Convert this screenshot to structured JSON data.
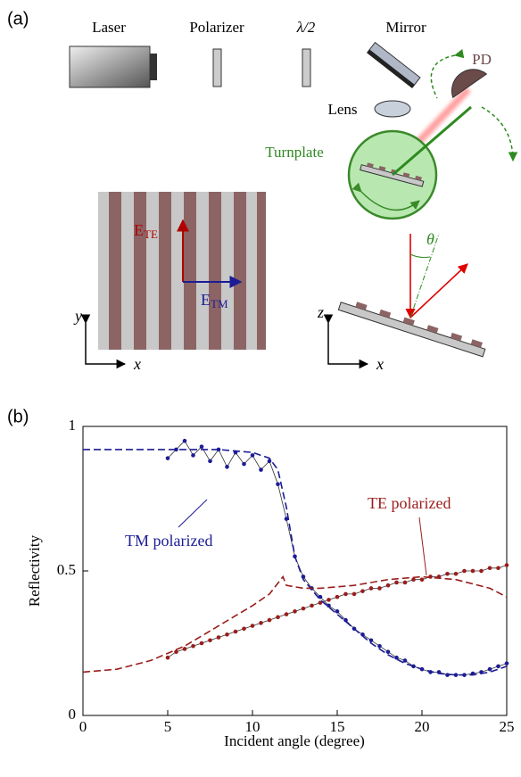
{
  "diagram": {
    "panel_label": "(a)",
    "laser": "Laser",
    "polarizer": "Polarizer",
    "half_wave": "λ/2",
    "mirror": "Mirror",
    "pd": "PD",
    "lens": "Lens",
    "turnplate": "Turnplate",
    "e_te": {
      "main": "E",
      "sub": "TE"
    },
    "e_tm": {
      "main": "E",
      "sub": "TM"
    },
    "axis_y": "y",
    "axis_x1": "x",
    "axis_z": "z",
    "axis_x2": "x",
    "theta": "θ"
  },
  "chart_data": {
    "type": "line",
    "panel_label": "(b)",
    "x_label": "Incident angle (degree)",
    "y_label": "Reflectivity",
    "xlim": [
      0,
      25
    ],
    "xticks": [
      0,
      5,
      10,
      15,
      20,
      25
    ],
    "ylim": [
      0,
      1
    ],
    "yticks": [
      0,
      0.5,
      1
    ],
    "series": [
      {
        "name": "TM polarized",
        "color": "#1c1c96",
        "style": "markers",
        "x": [
          5,
          5.5,
          6,
          6.5,
          7,
          7.5,
          8,
          8.5,
          9,
          9.5,
          10,
          10.5,
          11,
          11.5,
          12,
          12.5,
          13,
          13.5,
          14,
          14.5,
          15,
          15.5,
          16,
          16.5,
          17,
          17.5,
          18,
          18.5,
          19,
          19.5,
          20,
          20.5,
          21,
          21.5,
          22,
          22.5,
          23,
          23.5,
          24,
          24.5,
          25
        ],
        "values": [
          0.89,
          0.92,
          0.95,
          0.9,
          0.93,
          0.88,
          0.92,
          0.86,
          0.91,
          0.87,
          0.9,
          0.85,
          0.88,
          0.8,
          0.68,
          0.55,
          0.48,
          0.44,
          0.41,
          0.38,
          0.36,
          0.33,
          0.3,
          0.28,
          0.26,
          0.24,
          0.22,
          0.2,
          0.19,
          0.17,
          0.16,
          0.15,
          0.15,
          0.14,
          0.14,
          0.14,
          0.145,
          0.15,
          0.16,
          0.17,
          0.18
        ]
      },
      {
        "name": "TE polarized",
        "color": "#9a1c1c",
        "style": "markers",
        "x": [
          5,
          5.5,
          6,
          6.5,
          7,
          7.5,
          8,
          8.5,
          9,
          9.5,
          10,
          10.5,
          11,
          11.5,
          12,
          12.5,
          13,
          13.5,
          14,
          14.5,
          15,
          15.5,
          16,
          16.5,
          17,
          17.5,
          18,
          18.5,
          19,
          19.5,
          20,
          20.5,
          21,
          21.5,
          22,
          22.5,
          23,
          23.5,
          24,
          24.5,
          25
        ],
        "values": [
          0.2,
          0.22,
          0.23,
          0.24,
          0.25,
          0.26,
          0.27,
          0.28,
          0.29,
          0.3,
          0.31,
          0.32,
          0.33,
          0.34,
          0.35,
          0.36,
          0.37,
          0.38,
          0.39,
          0.4,
          0.41,
          0.42,
          0.42,
          0.43,
          0.44,
          0.44,
          0.45,
          0.46,
          0.46,
          0.47,
          0.47,
          0.48,
          0.48,
          0.49,
          0.49,
          0.5,
          0.5,
          0.5,
          0.51,
          0.51,
          0.52
        ]
      },
      {
        "color": "#1c1c96",
        "style": "dashed",
        "x": [
          0,
          2,
          4,
          6,
          8,
          10,
          11,
          11.5,
          12,
          12.5,
          13,
          14,
          15,
          16,
          17,
          18,
          19,
          20,
          21,
          22,
          23,
          24,
          25
        ],
        "values": [
          0.92,
          0.92,
          0.92,
          0.92,
          0.92,
          0.91,
          0.89,
          0.85,
          0.72,
          0.55,
          0.47,
          0.4,
          0.35,
          0.3,
          0.25,
          0.21,
          0.18,
          0.16,
          0.145,
          0.14,
          0.14,
          0.15,
          0.17
        ]
      },
      {
        "color": "#9a1c1c",
        "style": "dashed",
        "x": [
          0,
          2,
          4,
          6,
          8,
          10,
          11,
          11.8,
          12,
          13,
          14,
          16,
          18,
          20,
          22,
          24,
          25
        ],
        "values": [
          0.15,
          0.16,
          0.19,
          0.24,
          0.31,
          0.38,
          0.42,
          0.48,
          0.45,
          0.44,
          0.44,
          0.45,
          0.47,
          0.48,
          0.47,
          0.44,
          0.41
        ]
      }
    ]
  }
}
